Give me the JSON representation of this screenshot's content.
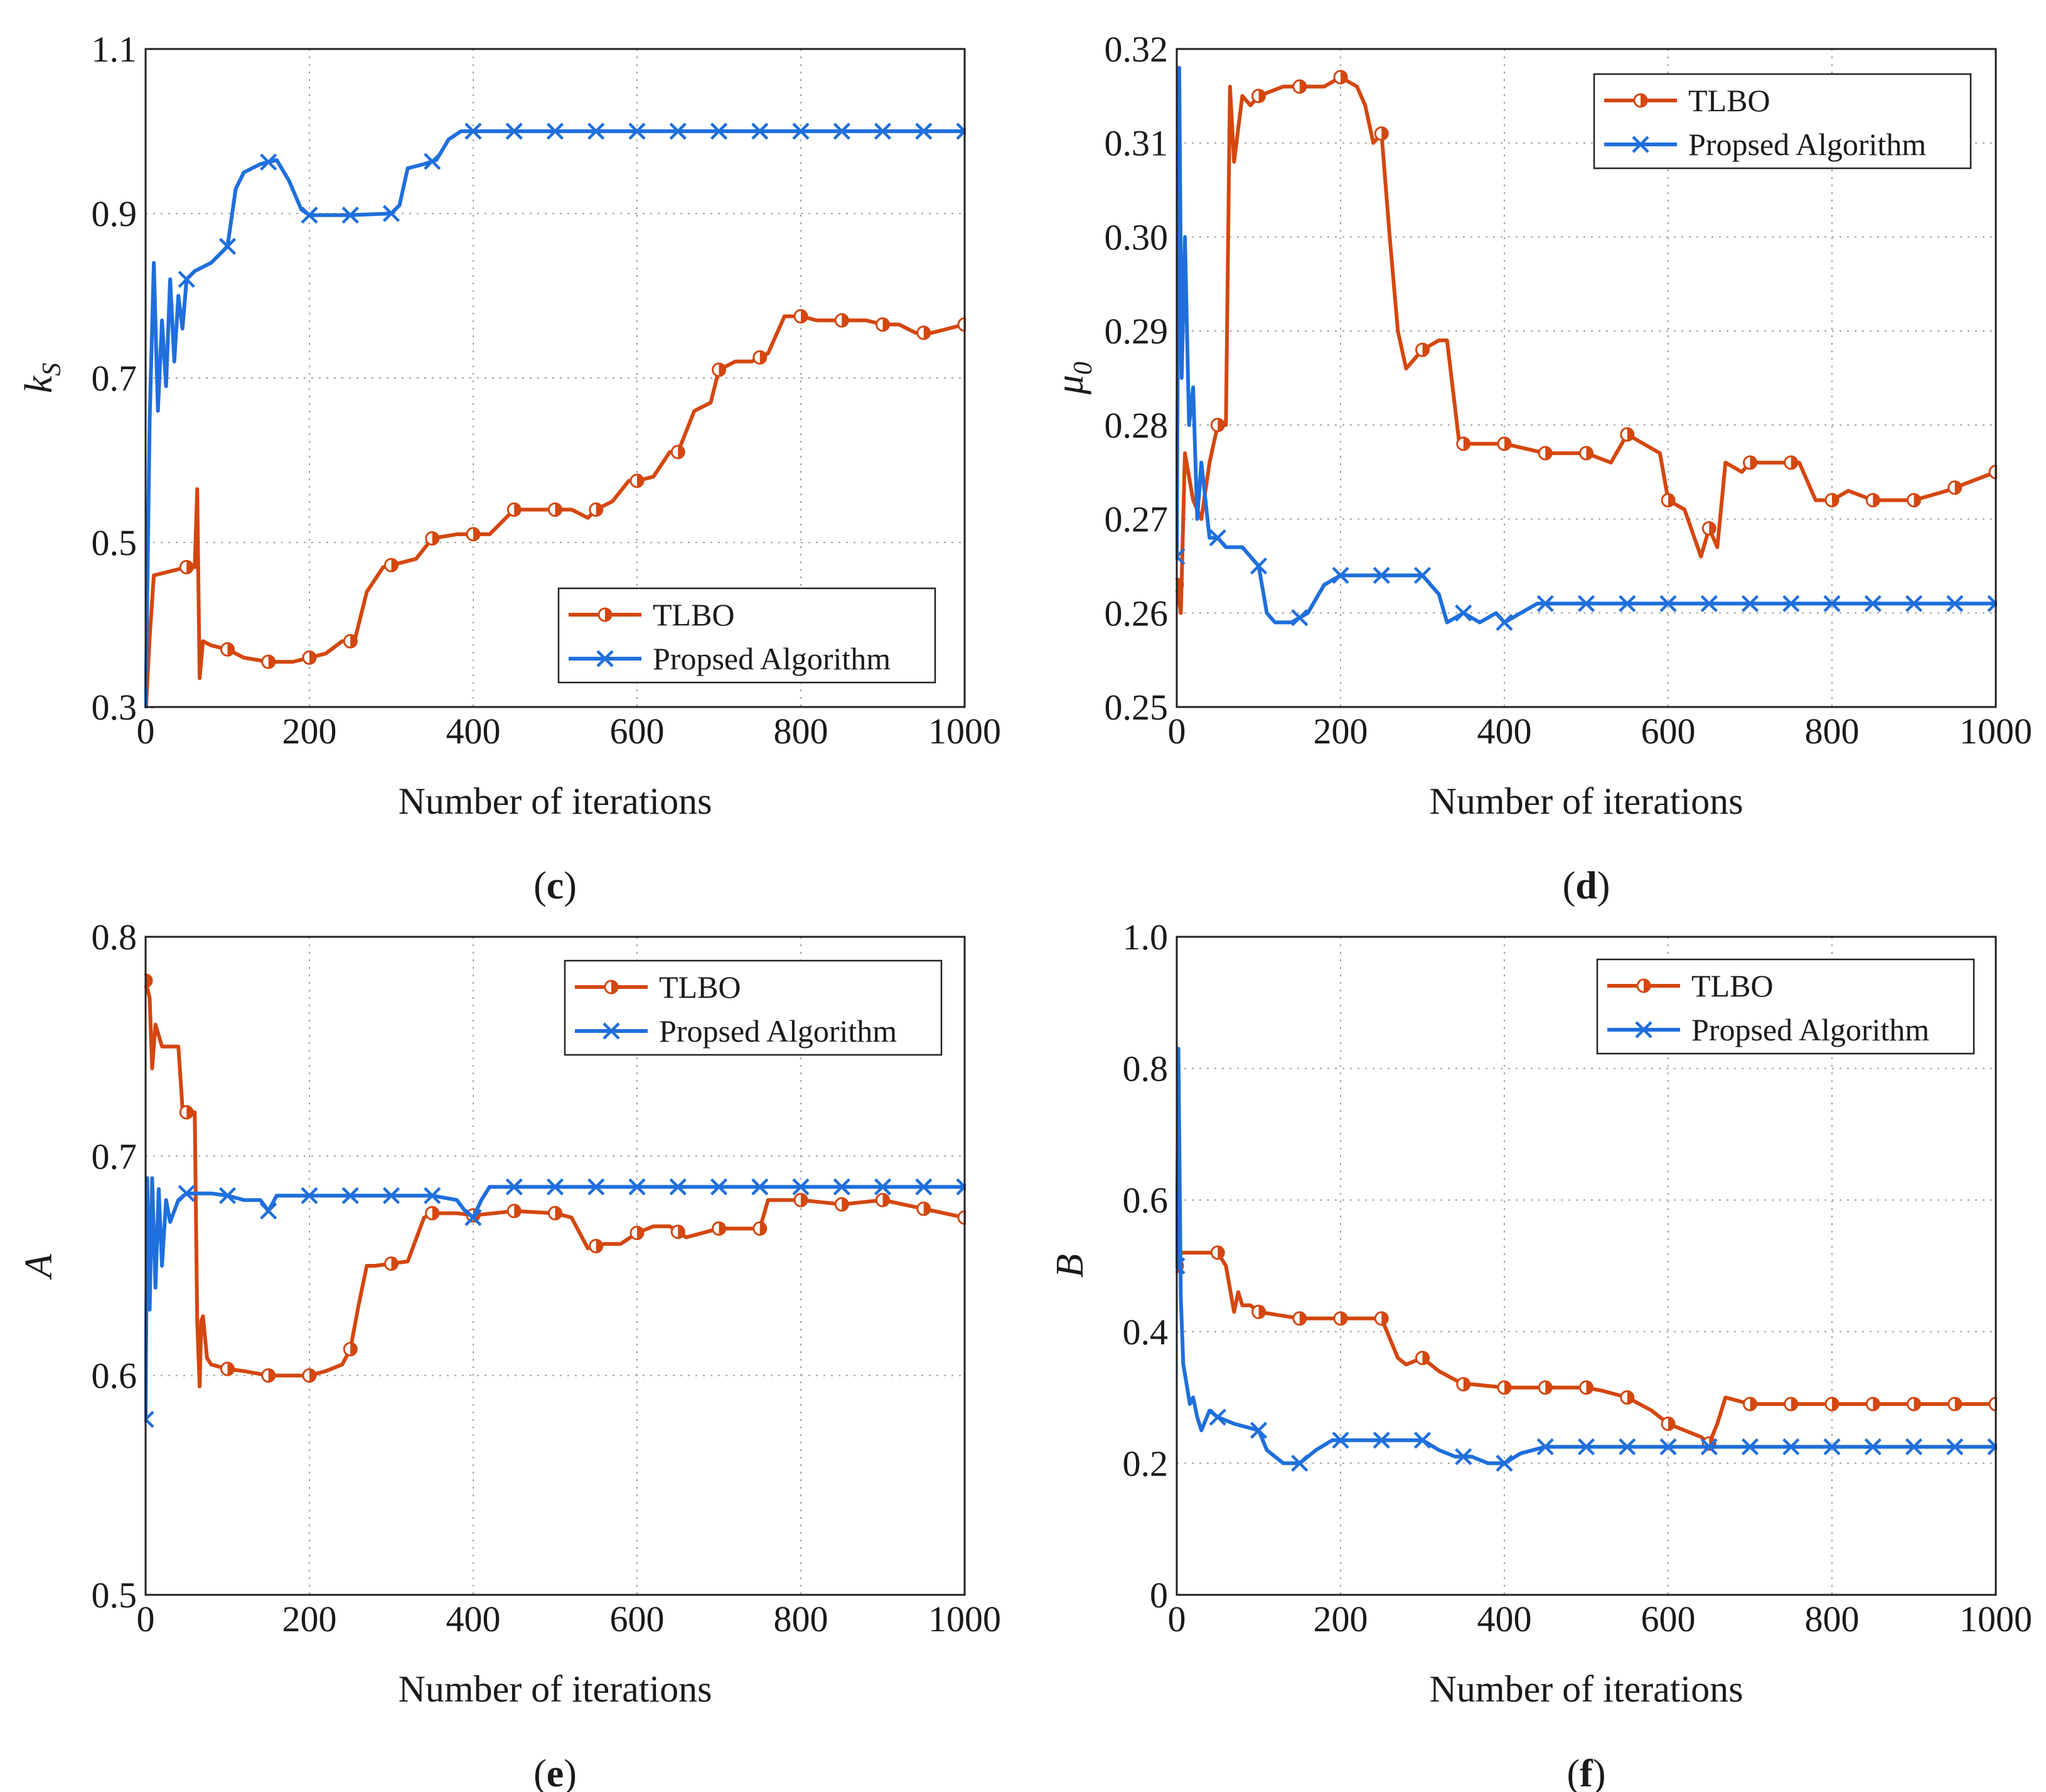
{
  "colors": {
    "tlbo": "#d4470f",
    "proposed": "#1f6fdc"
  },
  "legend": {
    "tlbo": "TLBO",
    "proposed": "Propsed Algorithm"
  },
  "chart_data": [
    {
      "id": "c",
      "type": "line",
      "panel_label": "c",
      "ylabel_main": "k",
      "ylabel_sub": "S",
      "xlabel": "Number of iterations",
      "xlim": [
        0,
        1000
      ],
      "ylim": [
        0.3,
        1.1
      ],
      "xticks": [
        0,
        200,
        400,
        600,
        800,
        1000
      ],
      "yticks": [
        0.3,
        0.5,
        0.7,
        0.9,
        1.1
      ],
      "ytick_labels": [
        "0.3",
        "0.5",
        "0.7",
        "0.9",
        "1.1"
      ],
      "legend_position": "bottom-right",
      "series": [
        {
          "name": "TLBO",
          "key": "tlbo",
          "x": [
            0,
            5,
            10,
            50,
            60,
            63,
            66,
            70,
            80,
            100,
            120,
            150,
            180,
            200,
            220,
            240,
            255,
            270,
            290,
            310,
            330,
            350,
            380,
            400,
            420,
            450,
            480,
            500,
            520,
            540,
            550,
            570,
            590,
            600,
            620,
            640,
            650,
            670,
            690,
            700,
            720,
            740,
            760,
            780,
            800,
            820,
            850,
            880,
            900,
            920,
            940,
            960,
            980,
            1000
          ],
          "y": [
            0.29,
            0.385,
            0.46,
            0.47,
            0.47,
            0.565,
            0.335,
            0.38,
            0.375,
            0.37,
            0.36,
            0.355,
            0.355,
            0.36,
            0.365,
            0.38,
            0.38,
            0.44,
            0.47,
            0.475,
            0.48,
            0.505,
            0.51,
            0.51,
            0.51,
            0.54,
            0.54,
            0.54,
            0.54,
            0.53,
            0.54,
            0.55,
            0.575,
            0.575,
            0.58,
            0.61,
            0.61,
            0.66,
            0.67,
            0.71,
            0.72,
            0.72,
            0.73,
            0.775,
            0.775,
            0.77,
            0.77,
            0.77,
            0.765,
            0.765,
            0.755,
            0.755,
            0.76,
            0.765
          ],
          "markers_x": [
            0,
            50,
            100,
            150,
            200,
            250,
            300,
            350,
            400,
            450,
            500,
            550,
            600,
            650,
            700,
            750,
            800,
            850,
            900,
            950,
            1000
          ]
        },
        {
          "name": "Propsed Algorithm",
          "key": "proposed",
          "x": [
            0,
            5,
            10,
            15,
            20,
            25,
            30,
            35,
            40,
            45,
            50,
            60,
            80,
            100,
            110,
            120,
            140,
            160,
            175,
            190,
            200,
            250,
            300,
            310,
            320,
            340,
            355,
            370,
            385,
            400,
            1000
          ],
          "y": [
            0.29,
            0.65,
            0.84,
            0.66,
            0.77,
            0.69,
            0.82,
            0.72,
            0.8,
            0.76,
            0.82,
            0.83,
            0.84,
            0.86,
            0.93,
            0.95,
            0.96,
            0.965,
            0.94,
            0.905,
            0.898,
            0.898,
            0.9,
            0.91,
            0.955,
            0.96,
            0.965,
            0.99,
            1.0,
            1.0,
            1.0
          ],
          "markers_x": [
            0,
            50,
            100,
            150,
            200,
            250,
            300,
            350,
            400,
            450,
            500,
            550,
            600,
            650,
            700,
            750,
            800,
            850,
            900,
            950,
            1000
          ]
        }
      ]
    },
    {
      "id": "d",
      "type": "line",
      "panel_label": "d",
      "ylabel_main": "μ",
      "ylabel_sub": "0",
      "xlabel": "Number of iterations",
      "xlim": [
        0,
        1000
      ],
      "ylim": [
        0.25,
        0.32
      ],
      "xticks": [
        0,
        200,
        400,
        600,
        800,
        1000
      ],
      "yticks": [
        0.25,
        0.26,
        0.27,
        0.28,
        0.29,
        0.3,
        0.31,
        0.32
      ],
      "ytick_labels": [
        "0.25",
        "0.26",
        "0.27",
        "0.28",
        "0.29",
        "0.30",
        "0.31",
        "0.32"
      ],
      "legend_position": "top-right",
      "series": [
        {
          "name": "TLBO",
          "key": "tlbo",
          "x": [
            0,
            5,
            10,
            20,
            30,
            40,
            50,
            55,
            60,
            65,
            70,
            80,
            90,
            100,
            130,
            150,
            180,
            200,
            220,
            230,
            240,
            250,
            260,
            270,
            280,
            300,
            320,
            330,
            345,
            400,
            450,
            500,
            530,
            550,
            570,
            590,
            600,
            620,
            640,
            650,
            660,
            670,
            690,
            700,
            720,
            760,
            780,
            800,
            820,
            850,
            900,
            940,
            970,
            1000
          ],
          "y": [
            0.263,
            0.26,
            0.277,
            0.272,
            0.27,
            0.276,
            0.28,
            0.28,
            0.28,
            0.316,
            0.308,
            0.315,
            0.314,
            0.315,
            0.316,
            0.316,
            0.316,
            0.317,
            0.316,
            0.314,
            0.31,
            0.311,
            0.3,
            0.29,
            0.286,
            0.288,
            0.289,
            0.289,
            0.278,
            0.278,
            0.277,
            0.277,
            0.276,
            0.279,
            0.278,
            0.277,
            0.272,
            0.271,
            0.266,
            0.269,
            0.267,
            0.276,
            0.275,
            0.276,
            0.276,
            0.276,
            0.272,
            0.272,
            0.273,
            0.272,
            0.272,
            0.273,
            0.274,
            0.275
          ],
          "markers_x": [
            0,
            50,
            100,
            150,
            200,
            250,
            300,
            350,
            400,
            450,
            500,
            550,
            600,
            650,
            700,
            750,
            800,
            850,
            900,
            950,
            1000
          ]
        },
        {
          "name": "Propsed Algorithm",
          "key": "proposed",
          "x": [
            0,
            3,
            6,
            10,
            15,
            20,
            25,
            30,
            40,
            50,
            60,
            80,
            100,
            110,
            120,
            140,
            160,
            180,
            200,
            250,
            300,
            320,
            330,
            350,
            370,
            390,
            400,
            420,
            440,
            450,
            1000
          ],
          "y": [
            0.266,
            0.318,
            0.285,
            0.3,
            0.28,
            0.284,
            0.27,
            0.276,
            0.268,
            0.268,
            0.267,
            0.267,
            0.265,
            0.26,
            0.259,
            0.259,
            0.26,
            0.263,
            0.264,
            0.264,
            0.264,
            0.262,
            0.259,
            0.26,
            0.259,
            0.26,
            0.259,
            0.26,
            0.261,
            0.261,
            0.261
          ],
          "markers_x": [
            0,
            50,
            100,
            150,
            200,
            250,
            300,
            350,
            400,
            450,
            500,
            550,
            600,
            650,
            700,
            750,
            800,
            850,
            900,
            950,
            1000
          ]
        }
      ]
    },
    {
      "id": "e",
      "type": "line",
      "panel_label": "e",
      "ylabel_main": "A",
      "ylabel_sub": "",
      "xlabel": "Number of iterations",
      "xlim": [
        0,
        1000
      ],
      "ylim": [
        0.5,
        0.8
      ],
      "xticks": [
        0,
        200,
        400,
        600,
        800,
        1000
      ],
      "yticks": [
        0.5,
        0.6,
        0.7,
        0.8
      ],
      "ytick_labels": [
        "0.5",
        "0.6",
        "0.7",
        "0.8"
      ],
      "legend_position": "top-right",
      "series": [
        {
          "name": "TLBO",
          "key": "tlbo",
          "x": [
            0,
            5,
            8,
            12,
            20,
            40,
            45,
            50,
            60,
            63,
            66,
            68,
            70,
            75,
            80,
            100,
            120,
            150,
            180,
            200,
            220,
            240,
            250,
            260,
            270,
            280,
            300,
            320,
            340,
            350,
            380,
            400,
            450,
            500,
            520,
            540,
            560,
            580,
            600,
            620,
            640,
            660,
            680,
            700,
            750,
            760,
            800,
            850,
            900,
            950,
            1000
          ],
          "y": [
            0.78,
            0.772,
            0.74,
            0.76,
            0.75,
            0.75,
            0.722,
            0.72,
            0.72,
            0.625,
            0.595,
            0.625,
            0.627,
            0.608,
            0.605,
            0.603,
            0.602,
            0.6,
            0.6,
            0.6,
            0.602,
            0.605,
            0.612,
            0.632,
            0.65,
            0.65,
            0.651,
            0.652,
            0.672,
            0.674,
            0.674,
            0.673,
            0.675,
            0.674,
            0.672,
            0.658,
            0.66,
            0.66,
            0.665,
            0.668,
            0.668,
            0.663,
            0.665,
            0.667,
            0.667,
            0.68,
            0.68,
            0.678,
            0.68,
            0.676,
            0.672
          ],
          "markers_x": [
            0,
            50,
            100,
            150,
            200,
            250,
            300,
            350,
            400,
            450,
            500,
            550,
            600,
            650,
            700,
            750,
            800,
            850,
            900,
            950,
            1000
          ]
        },
        {
          "name": "Propsed Algorithm",
          "key": "proposed",
          "x": [
            0,
            2,
            5,
            8,
            12,
            16,
            20,
            25,
            30,
            40,
            50,
            60,
            80,
            100,
            120,
            140,
            150,
            160,
            200,
            250,
            300,
            350,
            380,
            390,
            400,
            410,
            420,
            450,
            1000
          ],
          "y": [
            0.58,
            0.69,
            0.63,
            0.69,
            0.64,
            0.685,
            0.65,
            0.68,
            0.67,
            0.68,
            0.683,
            0.683,
            0.683,
            0.682,
            0.68,
            0.68,
            0.675,
            0.682,
            0.682,
            0.682,
            0.682,
            0.682,
            0.68,
            0.675,
            0.672,
            0.68,
            0.686,
            0.686,
            0.686
          ],
          "markers_x": [
            0,
            50,
            100,
            150,
            200,
            250,
            300,
            350,
            400,
            450,
            500,
            550,
            600,
            650,
            700,
            750,
            800,
            850,
            900,
            950,
            1000
          ]
        }
      ]
    },
    {
      "id": "f",
      "type": "line",
      "panel_label": "f",
      "ylabel_main": "B",
      "ylabel_sub": "",
      "xlabel": "Number of iterations",
      "xlim": [
        0,
        1000
      ],
      "ylim": [
        0,
        1.0
      ],
      "xticks": [
        0,
        200,
        400,
        600,
        800,
        1000
      ],
      "yticks": [
        0,
        0.2,
        0.4,
        0.6,
        0.8,
        1.0
      ],
      "ytick_labels": [
        "0",
        "0.2",
        "0.4",
        "0.6",
        "0.8",
        "1.0"
      ],
      "legend_position": "top-right",
      "series": [
        {
          "name": "TLBO",
          "key": "tlbo",
          "x": [
            0,
            5,
            50,
            60,
            70,
            75,
            80,
            90,
            100,
            150,
            200,
            250,
            260,
            270,
            280,
            300,
            320,
            350,
            360,
            400,
            450,
            500,
            520,
            550,
            580,
            600,
            620,
            640,
            650,
            660,
            670,
            700,
            750,
            800,
            850,
            900,
            950,
            1000
          ],
          "y": [
            0.5,
            0.52,
            0.52,
            0.5,
            0.43,
            0.46,
            0.44,
            0.44,
            0.43,
            0.42,
            0.42,
            0.42,
            0.39,
            0.36,
            0.35,
            0.36,
            0.34,
            0.32,
            0.32,
            0.315,
            0.315,
            0.315,
            0.31,
            0.3,
            0.28,
            0.26,
            0.25,
            0.24,
            0.23,
            0.26,
            0.3,
            0.29,
            0.29,
            0.29,
            0.29,
            0.29,
            0.29,
            0.29
          ],
          "markers_x": [
            0,
            50,
            100,
            150,
            200,
            250,
            300,
            350,
            400,
            450,
            500,
            550,
            600,
            650,
            700,
            750,
            800,
            850,
            900,
            950,
            1000
          ]
        },
        {
          "name": "Propsed Algorithm",
          "key": "proposed",
          "x": [
            0,
            2,
            5,
            8,
            12,
            16,
            20,
            25,
            30,
            40,
            50,
            70,
            100,
            110,
            120,
            130,
            150,
            170,
            190,
            200,
            250,
            300,
            320,
            340,
            360,
            380,
            400,
            420,
            450,
            1000
          ],
          "y": [
            0.5,
            0.83,
            0.45,
            0.35,
            0.32,
            0.29,
            0.3,
            0.27,
            0.25,
            0.28,
            0.27,
            0.26,
            0.25,
            0.22,
            0.21,
            0.2,
            0.2,
            0.22,
            0.235,
            0.235,
            0.235,
            0.235,
            0.22,
            0.21,
            0.21,
            0.2,
            0.2,
            0.215,
            0.225,
            0.225
          ],
          "markers_x": [
            0,
            50,
            100,
            150,
            200,
            250,
            300,
            350,
            400,
            450,
            500,
            550,
            600,
            650,
            700,
            750,
            800,
            850,
            900,
            950,
            1000
          ]
        }
      ]
    }
  ]
}
